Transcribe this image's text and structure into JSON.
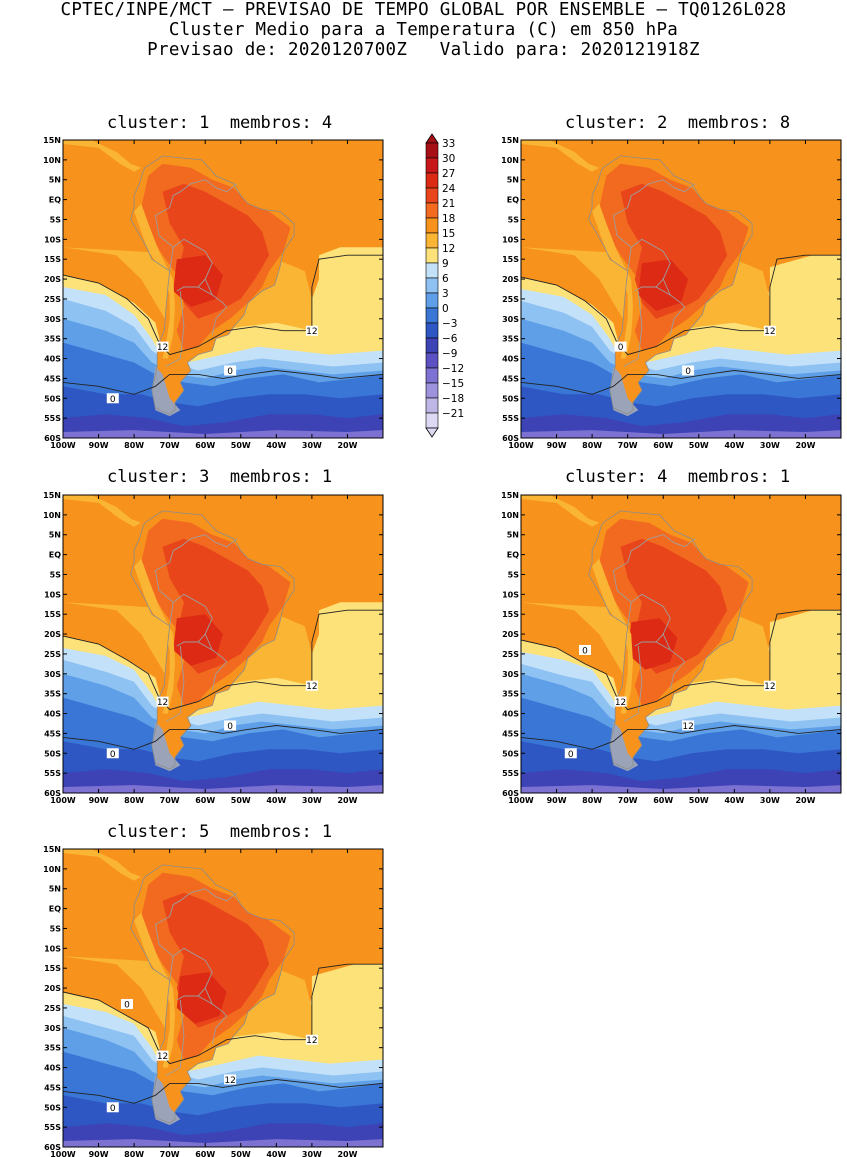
{
  "header": {
    "line1": "CPTEC/INPE/MCT – PREVISAO DE TEMPO GLOBAL POR ENSEMBLE – TQ0126L028",
    "line2": "Cluster Medio para a Temperatura (C) em 850 hPa",
    "line3": "Previsao de: 2020120700Z   Valido para: 2020121918Z"
  },
  "axes": {
    "lat_labels": [
      "15N",
      "10N",
      "5N",
      "EQ",
      "5S",
      "10S",
      "15S",
      "20S",
      "25S",
      "30S",
      "35S",
      "40S",
      "45S",
      "50S",
      "55S",
      "60S"
    ],
    "lon_labels": [
      "100W",
      "90W",
      "80W",
      "70W",
      "60W",
      "50W",
      "40W",
      "30W",
      "20W"
    ]
  },
  "legend": {
    "levels": [
      "33",
      "30",
      "27",
      "24",
      "21",
      "18",
      "15",
      "12",
      "9",
      "6",
      "3",
      "0",
      "−3",
      "−6",
      "−9",
      "−12",
      "−15",
      "−18",
      "−21"
    ],
    "colors": [
      "#a50f15",
      "#c8171b",
      "#dc2a14",
      "#e9451a",
      "#f26a1f",
      "#f7921c",
      "#fbb534",
      "#fde27a",
      "#c4e1fa",
      "#8ec2f2",
      "#5e9fe8",
      "#3a76d6",
      "#2e57c4",
      "#3d43b4",
      "#5c50c2",
      "#7d72d2",
      "#9d92dc",
      "#bfb6e8",
      "#ddd8f3"
    ]
  },
  "panels": [
    {
      "title": "cluster: 1  membros: 4",
      "contour_labels": [
        "12",
        "12",
        "0",
        "0"
      ]
    },
    {
      "title": "cluster: 2  membros: 8",
      "contour_labels": [
        "12",
        "0",
        "0"
      ]
    },
    {
      "title": "cluster: 3  membros: 1",
      "contour_labels": [
        "12",
        "12",
        "0",
        "0"
      ]
    },
    {
      "title": "cluster: 4  membros: 1",
      "contour_labels": [
        "12",
        "12",
        "12",
        "0",
        "0"
      ]
    },
    {
      "title": "cluster: 5  membros: 1",
      "contour_labels": [
        "12",
        "12",
        "12",
        "0",
        "0"
      ]
    }
  ]
}
